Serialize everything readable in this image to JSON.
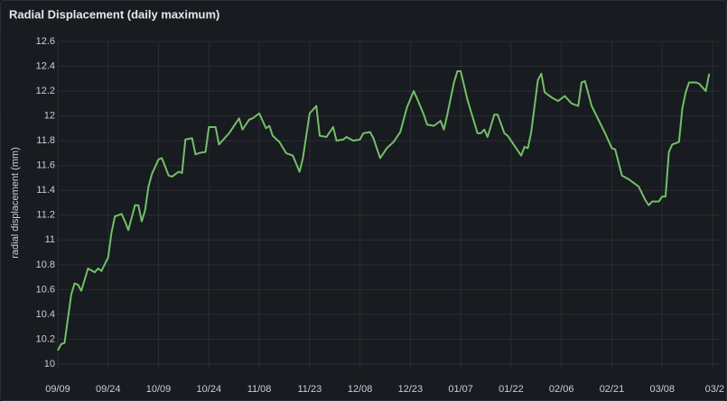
{
  "chart_data": {
    "type": "line",
    "title": "Radial Displacement (daily maximum)",
    "y_label": "radial displacement (mm)",
    "x": [
      0,
      1,
      2,
      4,
      5,
      6,
      7,
      9,
      11,
      12,
      13,
      15,
      16,
      17,
      19,
      20,
      21,
      23,
      24,
      25,
      26,
      27,
      28,
      30,
      31,
      33,
      34,
      36,
      37,
      38,
      40,
      41,
      42,
      44,
      45,
      47,
      48,
      51,
      54,
      55,
      57,
      58,
      59,
      60,
      62,
      63,
      64,
      66,
      68,
      70,
      72,
      73,
      75,
      77,
      78,
      80,
      82,
      83,
      85,
      86,
      88,
      90,
      91,
      93,
      94,
      96,
      98,
      100,
      102,
      104,
      106,
      107,
      109,
      110,
      112,
      114,
      115,
      116,
      118,
      119,
      120,
      122,
      123,
      125,
      126,
      127,
      128,
      130,
      131,
      133,
      134,
      136,
      138,
      139,
      140,
      141,
      143,
      144,
      145,
      147,
      149,
      151,
      153,
      155,
      156,
      157,
      159,
      161,
      163,
      165,
      166,
      168,
      170,
      172,
      173,
      175,
      176,
      177,
      179,
      180,
      181,
      182,
      183,
      185,
      186,
      187,
      188,
      190,
      191,
      193,
      194
    ],
    "series": [
      {
        "name": "radial displacement",
        "color": "#73bf69",
        "values": [
          10.11,
          10.16,
          10.17,
          10.56,
          10.65,
          10.64,
          10.59,
          10.77,
          10.74,
          10.77,
          10.75,
          10.86,
          11.06,
          11.19,
          11.21,
          11.15,
          11.08,
          11.28,
          11.28,
          11.15,
          11.24,
          11.43,
          11.53,
          11.65,
          11.66,
          11.52,
          11.51,
          11.55,
          11.54,
          11.81,
          11.82,
          11.69,
          11.7,
          11.71,
          11.91,
          11.91,
          11.77,
          11.86,
          11.98,
          11.89,
          11.97,
          11.98,
          12.0,
          12.02,
          11.9,
          11.92,
          11.84,
          11.79,
          11.7,
          11.68,
          11.55,
          11.66,
          12.02,
          12.08,
          11.84,
          11.83,
          11.91,
          11.8,
          11.81,
          11.83,
          11.8,
          11.81,
          11.86,
          11.87,
          11.82,
          11.66,
          11.74,
          11.79,
          11.87,
          12.07,
          12.2,
          12.14,
          12.01,
          11.93,
          11.92,
          11.96,
          11.89,
          12.01,
          12.27,
          12.36,
          12.36,
          12.13,
          12.04,
          11.86,
          11.86,
          11.89,
          11.83,
          12.01,
          12.01,
          11.86,
          11.84,
          11.76,
          11.68,
          11.75,
          11.74,
          11.87,
          12.29,
          12.34,
          12.19,
          12.15,
          12.12,
          12.16,
          12.1,
          12.08,
          12.27,
          12.28,
          12.08,
          11.97,
          11.86,
          11.74,
          11.73,
          11.52,
          11.49,
          11.45,
          11.43,
          11.32,
          11.28,
          11.31,
          11.31,
          11.35,
          11.35,
          11.71,
          11.77,
          11.79,
          12.06,
          12.19,
          12.27,
          12.27,
          12.26,
          12.2,
          12.34
        ]
      }
    ],
    "xlim": [
      0,
      195
    ],
    "xticks": [
      {
        "value": 0,
        "label": "09/09"
      },
      {
        "value": 15,
        "label": "09/24"
      },
      {
        "value": 30,
        "label": "10/09"
      },
      {
        "value": 45,
        "label": "10/24"
      },
      {
        "value": 60,
        "label": "11/08"
      },
      {
        "value": 75,
        "label": "11/23"
      },
      {
        "value": 90,
        "label": "12/08"
      },
      {
        "value": 105,
        "label": "12/23"
      },
      {
        "value": 120,
        "label": "01/07"
      },
      {
        "value": 135,
        "label": "01/22"
      },
      {
        "value": 150,
        "label": "02/06"
      },
      {
        "value": 165,
        "label": "02/21"
      },
      {
        "value": 180,
        "label": "03/08"
      },
      {
        "value": 195,
        "label": "03/2"
      }
    ],
    "ylim": [
      10,
      12.6
    ],
    "yticks": [
      10,
      10.2,
      10.4,
      10.6,
      10.8,
      11,
      11.2,
      11.4,
      11.6,
      11.8,
      12,
      12.2,
      12.4,
      12.6
    ],
    "grid": true
  }
}
